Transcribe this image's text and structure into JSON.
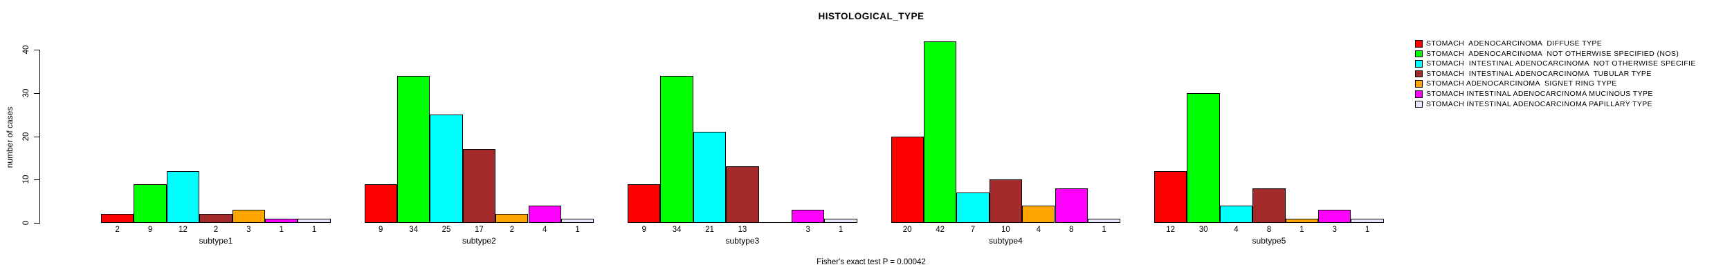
{
  "chart_data": {
    "type": "bar",
    "title": "HISTOLOGICAL_TYPE",
    "xlabel": "",
    "ylabel": "number of cases",
    "footnote": "Fisher's exact test P = 0.00042",
    "ylim": [
      0,
      40
    ],
    "yticks": [
      0,
      10,
      20,
      30,
      40
    ],
    "grid": false,
    "legend_position": "top-right",
    "bar_value_labels": true,
    "bar_border_color": "#000000",
    "categories": [
      "subtype1",
      "subtype2",
      "subtype3",
      "subtype4",
      "subtype5"
    ],
    "series": [
      {
        "name": "STOMACH  ADENOCARCINOMA  DIFFUSE TYPE",
        "color": "#FF0000",
        "values": [
          2,
          9,
          9,
          20,
          12
        ]
      },
      {
        "name": "STOMACH  ADENOCARCINOMA  NOT OTHERWISE SPECIFIED (NOS)",
        "color": "#00FF00",
        "values": [
          9,
          34,
          34,
          42,
          30
        ]
      },
      {
        "name": "STOMACH  INTESTINAL ADENOCARCINOMA  NOT OTHERWISE SPECIFIE",
        "color": "#00FFFF",
        "values": [
          12,
          25,
          21,
          7,
          4
        ]
      },
      {
        "name": "STOMACH  INTESTINAL ADENOCARCINOMA  TUBULAR TYPE",
        "color": "#A52A2A",
        "values": [
          2,
          17,
          13,
          10,
          8
        ]
      },
      {
        "name": "STOMACH ADENOCARCINOMA  SIGNET RING TYPE",
        "color": "#FFA500",
        "values": [
          3,
          2,
          0,
          4,
          1
        ]
      },
      {
        "name": "STOMACH INTESTINAL ADENOCARCINOMA MUCINOUS TYPE",
        "color": "#FF00FF",
        "values": [
          1,
          4,
          3,
          8,
          3
        ]
      },
      {
        "name": "STOMACH INTESTINAL ADENOCARCINOMA PAPILLARY TYPE",
        "color": "#E6E6FA",
        "values": [
          1,
          1,
          1,
          1,
          1
        ]
      }
    ]
  }
}
